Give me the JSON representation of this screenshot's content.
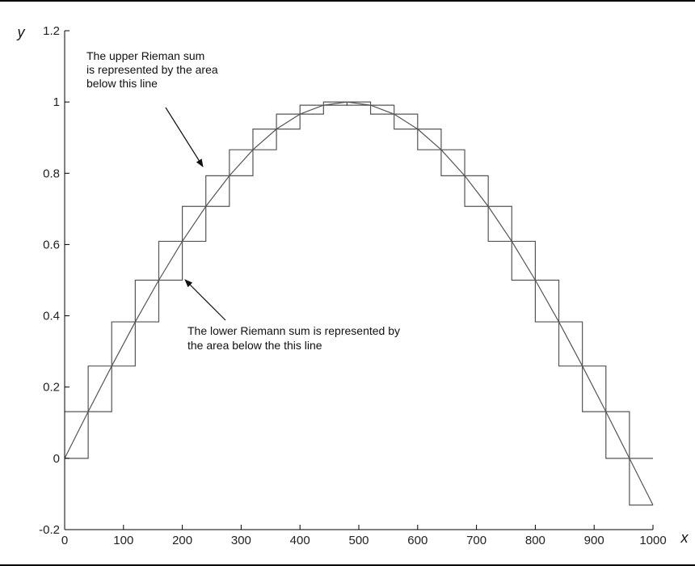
{
  "chart_data": {
    "type": "line",
    "title": "",
    "xlabel": "x",
    "ylabel": "y",
    "xlim": [
      0,
      1000
    ],
    "ylim": [
      -0.2,
      1.2
    ],
    "x_ticks": [
      0,
      100,
      200,
      300,
      400,
      500,
      600,
      700,
      800,
      900,
      1000
    ],
    "x_tick_labels": [
      "0",
      "100",
      "200",
      "300",
      "400",
      "500",
      "600",
      "700",
      "800",
      "900",
      "1000"
    ],
    "y_ticks": [
      -0.2,
      0,
      0.2,
      0.4,
      0.6,
      0.8,
      1,
      1.2
    ],
    "y_tick_labels": [
      "-0.2",
      "0",
      "0.2",
      "0.4",
      "0.6",
      "0.8",
      "1",
      "1.2"
    ],
    "grid": false,
    "colors": {
      "axes": "#000000",
      "lines": "#555555",
      "background": "#ffffff"
    },
    "series": [
      {
        "kind": "curve",
        "function": "sin(pi * x / 960)",
        "x": [
          0,
          40,
          80,
          120,
          160,
          200,
          240,
          280,
          320,
          360,
          400,
          440,
          480,
          520,
          560,
          600,
          640,
          680,
          720,
          760,
          800,
          840,
          880,
          920,
          960,
          1000
        ],
        "y": [
          0,
          0.131,
          0.259,
          0.383,
          0.5,
          0.609,
          0.707,
          0.793,
          0.866,
          0.924,
          0.966,
          0.991,
          1.0,
          0.991,
          0.966,
          0.924,
          0.866,
          0.793,
          0.707,
          0.609,
          0.5,
          0.383,
          0.259,
          0.131,
          0,
          -0.131
        ]
      },
      {
        "kind": "step-left",
        "step_edges": [
          0,
          40,
          80,
          120,
          160,
          200,
          240,
          280,
          320,
          360,
          400,
          440,
          480,
          520,
          560,
          600,
          640,
          680,
          720,
          760,
          800,
          840,
          880,
          920,
          960,
          1000
        ],
        "y": [
          0,
          0.131,
          0.259,
          0.383,
          0.5,
          0.609,
          0.707,
          0.793,
          0.866,
          0.924,
          0.966,
          0.991,
          1.0,
          0.991,
          0.966,
          0.924,
          0.866,
          0.793,
          0.707,
          0.609,
          0.5,
          0.383,
          0.259,
          0.131,
          0
        ]
      },
      {
        "kind": "step-right",
        "step_edges": [
          0,
          40,
          80,
          120,
          160,
          200,
          240,
          280,
          320,
          360,
          400,
          440,
          480,
          520,
          560,
          600,
          640,
          680,
          720,
          760,
          800,
          840,
          880,
          920,
          960,
          1000
        ],
        "y": [
          0.131,
          0.259,
          0.383,
          0.5,
          0.609,
          0.707,
          0.793,
          0.866,
          0.924,
          0.966,
          0.991,
          1.0,
          0.991,
          0.966,
          0.924,
          0.866,
          0.793,
          0.707,
          0.609,
          0.5,
          0.383,
          0.259,
          0.131,
          0,
          -0.131
        ]
      }
    ],
    "annotations": [
      {
        "lines": [
          "The upper Rieman sum",
          "is represented by the area",
          "below this line"
        ],
        "arrow_to": [
          240,
          0.8
        ]
      },
      {
        "lines": [
          "The lower Riemann sum is represented by",
          "the area below the this line"
        ],
        "arrow_to": [
          200,
          0.5
        ]
      }
    ]
  }
}
